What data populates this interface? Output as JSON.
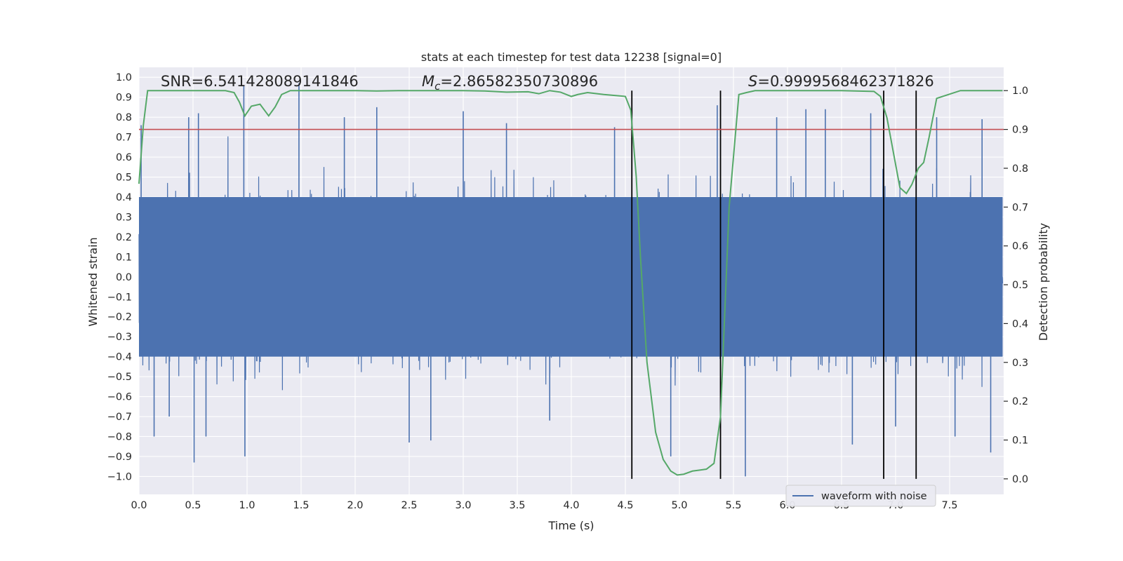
{
  "chart_data": {
    "type": "line",
    "title": "stats at each timestep for test data 12238 [signal=0]",
    "xlabel": "Time (s)",
    "ylabel": "Whitened strain",
    "ylabel_right": "Detection probability",
    "xlim": [
      0.0,
      8.0
    ],
    "ylim": [
      -1.09,
      1.05
    ],
    "ylim_right": [
      -0.04,
      1.06
    ],
    "x_ticks": [
      0.0,
      0.5,
      1.0,
      1.5,
      2.0,
      2.5,
      3.0,
      3.5,
      4.0,
      4.5,
      5.0,
      5.5,
      6.0,
      6.5,
      7.0,
      7.5
    ],
    "x_tick_labels": [
      "0.0",
      "0.5",
      "1.0",
      "1.5",
      "2.0",
      "2.5",
      "3.0",
      "3.5",
      "4.0",
      "4.5",
      "5.0",
      "5.5",
      "6.0",
      "6.5",
      "7.0",
      "7.5"
    ],
    "y_ticks": [
      1.0,
      0.9,
      0.8,
      0.7,
      0.6,
      0.5,
      0.4,
      0.3,
      0.2,
      0.1,
      0.0,
      -0.1,
      -0.2,
      -0.3,
      -0.4,
      -0.5,
      -0.6,
      -0.7,
      -0.8,
      -0.9,
      -1.0
    ],
    "y_tick_labels": [
      "1.0",
      "0.9",
      "0.8",
      "0.7",
      "0.6",
      "0.5",
      "0.4",
      "0.3",
      "0.2",
      "0.1",
      "0.0",
      "−0.1",
      "−0.2",
      "−0.3",
      "−0.4",
      "−0.5",
      "−0.6",
      "−0.7",
      "−0.8",
      "−0.9",
      "−1.0"
    ],
    "y_right_ticks": [
      1.0,
      0.9,
      0.8,
      0.7,
      0.6,
      0.5,
      0.4,
      0.3,
      0.2,
      0.1,
      0.0
    ],
    "y_right_tick_labels": [
      "1.0",
      "0.9",
      "0.8",
      "0.7",
      "0.6",
      "0.5",
      "0.4",
      "0.3",
      "0.2",
      "0.1",
      "0.0"
    ],
    "annotations": {
      "snr": "SNR=6.541428089141846",
      "mc_symbol": "M",
      "mc_sub": "c",
      "mc_value": "=2.86582350730896",
      "s_symbol": "S",
      "s_value": "=0.9999568462371826"
    },
    "legend": {
      "label": "waveform with noise",
      "position": "lower right"
    },
    "threshold": {
      "value": 0.9,
      "axis": "right",
      "color": "#c44e52"
    },
    "vertical_lines": [
      4.56,
      5.38,
      6.89,
      7.19
    ],
    "waveform": {
      "name": "waveform with noise",
      "color": "#4c72b0",
      "x_range": [
        0.0,
        7.99
      ],
      "envelope": [
        0.4,
        -0.4
      ],
      "peaks": [
        {
          "t": 0.02,
          "v": 0.76
        },
        {
          "t": 0.14,
          "v": -0.8
        },
        {
          "t": 0.28,
          "v": -0.7
        },
        {
          "t": 0.46,
          "v": 0.8
        },
        {
          "t": 0.51,
          "v": -0.93
        },
        {
          "t": 0.55,
          "v": 0.82
        },
        {
          "t": 0.62,
          "v": -0.8
        },
        {
          "t": 0.97,
          "v": 0.96
        },
        {
          "t": 0.98,
          "v": -0.9
        },
        {
          "t": 1.48,
          "v": 0.97
        },
        {
          "t": 1.9,
          "v": 0.8
        },
        {
          "t": 2.2,
          "v": 0.85
        },
        {
          "t": 2.5,
          "v": -0.83
        },
        {
          "t": 2.7,
          "v": -0.82
        },
        {
          "t": 3.0,
          "v": 0.83
        },
        {
          "t": 3.4,
          "v": 0.77
        },
        {
          "t": 3.8,
          "v": -0.72
        },
        {
          "t": 4.4,
          "v": 0.75
        },
        {
          "t": 4.92,
          "v": -0.9
        },
        {
          "t": 5.35,
          "v": 0.86
        },
        {
          "t": 5.61,
          "v": -1.0
        },
        {
          "t": 5.9,
          "v": 0.8
        },
        {
          "t": 6.17,
          "v": 0.84
        },
        {
          "t": 6.35,
          "v": 0.84
        },
        {
          "t": 6.6,
          "v": -0.84
        },
        {
          "t": 6.77,
          "v": 0.82
        },
        {
          "t": 7.0,
          "v": -0.75
        },
        {
          "t": 7.38,
          "v": 0.8
        },
        {
          "t": 7.55,
          "v": -0.8
        },
        {
          "t": 7.8,
          "v": 0.79
        },
        {
          "t": 7.88,
          "v": -0.88
        }
      ]
    },
    "probability": {
      "name": "Detection probability",
      "color": "#55a868",
      "axis": "right",
      "x": [
        0.0,
        0.04,
        0.08,
        0.2,
        0.4,
        0.6,
        0.8,
        0.88,
        0.93,
        0.98,
        1.04,
        1.12,
        1.2,
        1.26,
        1.32,
        1.4,
        1.6,
        1.8,
        2.0,
        2.2,
        2.4,
        2.6,
        2.8,
        3.0,
        3.2,
        3.4,
        3.6,
        3.7,
        3.8,
        3.9,
        4.0,
        4.06,
        4.15,
        4.3,
        4.5,
        4.55,
        4.6,
        4.64,
        4.7,
        4.78,
        4.85,
        4.92,
        4.98,
        5.04,
        5.12,
        5.2,
        5.25,
        5.32,
        5.38,
        5.46,
        5.55,
        5.62,
        5.7,
        5.9,
        6.2,
        6.5,
        6.8,
        6.86,
        6.92,
        6.98,
        7.04,
        7.1,
        7.15,
        7.21,
        7.26,
        7.31,
        7.38,
        7.6,
        7.99
      ],
      "values": [
        0.76,
        0.91,
        1.0,
        1.0,
        1.0,
        1.0,
        1.0,
        0.995,
        0.97,
        0.935,
        0.96,
        0.965,
        0.935,
        0.958,
        0.99,
        1.0,
        1.0,
        1.0,
        1.0,
        0.999,
        1.0,
        1.0,
        1.0,
        1.0,
        0.999,
        0.996,
        0.997,
        0.992,
        1.0,
        0.996,
        0.985,
        0.99,
        0.995,
        0.99,
        0.985,
        0.95,
        0.78,
        0.57,
        0.3,
        0.12,
        0.05,
        0.02,
        0.01,
        0.012,
        0.02,
        0.023,
        0.025,
        0.04,
        0.16,
        0.7,
        0.99,
        0.995,
        1.0,
        1.0,
        1.0,
        1.0,
        0.998,
        0.985,
        0.93,
        0.84,
        0.75,
        0.735,
        0.758,
        0.8,
        0.815,
        0.88,
        0.98,
        1.0,
        1.0
      ]
    }
  }
}
